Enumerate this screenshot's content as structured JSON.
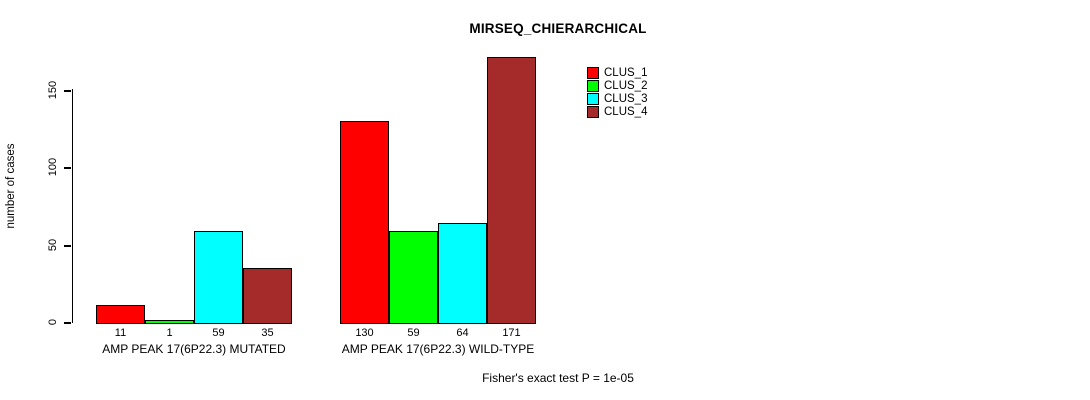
{
  "chart_data": {
    "type": "bar",
    "title": "MIRSEQ_CHIERARCHICAL",
    "xlabel": "",
    "ylabel": "number of cases",
    "ylim": [
      0,
      175
    ],
    "yticks": [
      0,
      50,
      100,
      150
    ],
    "grid": false,
    "legend_position": "inside-top-right",
    "categories": [
      "AMP PEAK 17(6P22.3) MUTATED",
      "AMP PEAK 17(6P22.3) WILD-TYPE"
    ],
    "series": [
      {
        "name": "CLUS_1",
        "color": "#ff0000",
        "values": [
          11,
          130
        ]
      },
      {
        "name": "CLUS_2",
        "color": "#00ff00",
        "values": [
          1,
          59
        ]
      },
      {
        "name": "CLUS_3",
        "color": "#00ffff",
        "values": [
          59,
          64
        ]
      },
      {
        "name": "CLUS_4",
        "color": "#a52a2a",
        "values": [
          35,
          171
        ]
      }
    ],
    "bar_value_labels_shown": true,
    "annotation": "Fisher's exact test P = 1e-05",
    "colors": {
      "axis": "#000000",
      "text": "#000000",
      "background": "#ffffff"
    }
  }
}
